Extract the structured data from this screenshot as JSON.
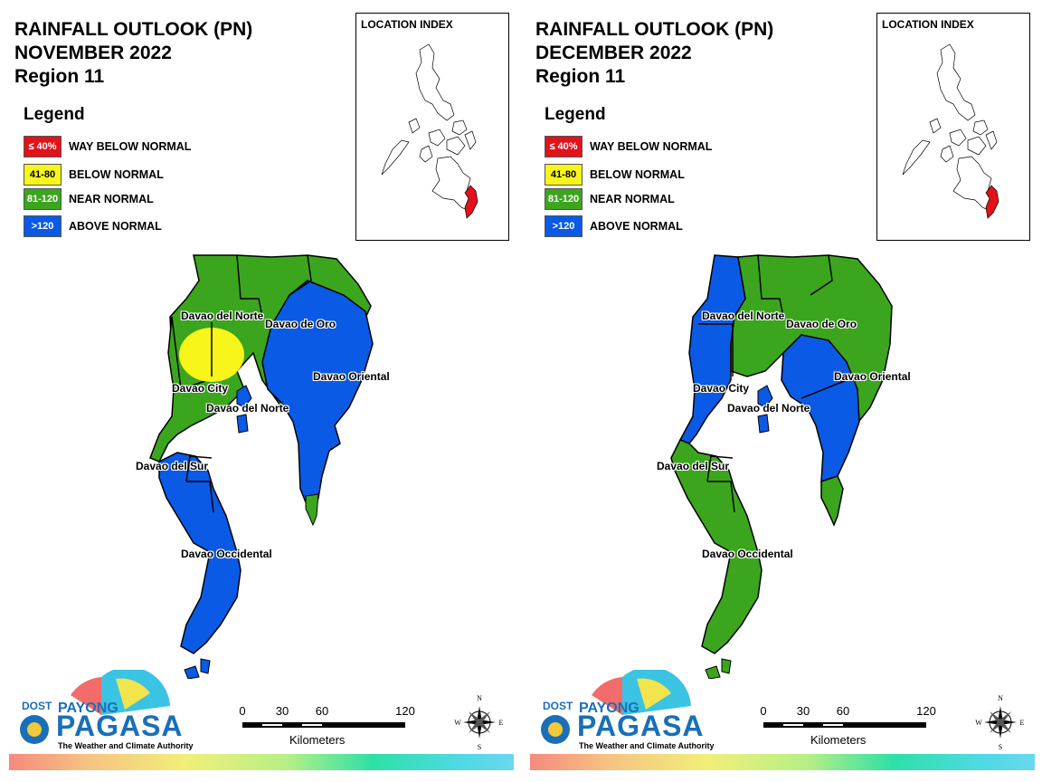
{
  "legend": {
    "title": "Legend",
    "items": [
      {
        "swatch_text": "≤ 40%",
        "label": "WAY BELOW NORMAL",
        "color": "#e1121a",
        "text_color": "#ffffff"
      },
      {
        "swatch_text": "41-80",
        "label": "BELOW NORMAL",
        "color": "#f7f51a",
        "text_color": "#000000"
      },
      {
        "swatch_text": "81-120",
        "label": "NEAR NORMAL",
        "color": "#3ca51e",
        "text_color": "#ffffff"
      },
      {
        "swatch_text": ">120",
        "label": "ABOVE NORMAL",
        "color": "#0a5ae6",
        "text_color": "#ffffff"
      }
    ]
  },
  "location_index": {
    "title": "LOCATION INDEX",
    "highlight_color": "#e1121a"
  },
  "panels": [
    {
      "title_line1": "RAINFALL OUTLOOK (PN)",
      "title_line2": "NOVEMBER 2022",
      "title_line3": "Region 11",
      "provinces": {
        "davao_del_norte": "near-normal",
        "davao_del_norte_center": "below-normal",
        "davao_de_oro": "near-normal",
        "davao_oriental": "above-normal",
        "davao_city": "near-normal",
        "samal_islands": "above-normal",
        "davao_del_sur": "above-normal",
        "davao_occidental": "above-normal"
      },
      "labels": {
        "davao_del_norte": "Davao del Norte",
        "davao_de_oro": "Davao de Oro",
        "davao_oriental": "Davao Oriental",
        "davao_city": "Davao City",
        "davao_del_norte_2": "Davao del Norte",
        "davao_del_sur": "Davao del Sur",
        "davao_occidental": "Davao Occidental"
      }
    },
    {
      "title_line1": "RAINFALL OUTLOOK (PN)",
      "title_line2": "DECEMBER 2022",
      "title_line3": "Region 11",
      "provinces": {
        "davao_del_norte": "near-normal",
        "davao_de_oro": "near-normal",
        "davao_oriental": "near-normal",
        "davao_oriental_west": "above-normal",
        "davao_city": "above-normal",
        "samal_islands": "above-normal",
        "davao_del_sur": "near-normal",
        "davao_occidental": "near-normal"
      },
      "labels": {
        "davao_del_norte": "Davao del Norte",
        "davao_de_oro": "Davao de Oro",
        "davao_oriental": "Davao Oriental",
        "davao_city": "Davao City",
        "davao_del_norte_2": "Davao del Norte",
        "davao_del_sur": "Davao del Sur",
        "davao_occidental": "Davao Occidental"
      }
    }
  ],
  "logo": {
    "dost": "DOST",
    "payong": "PAYONG",
    "pagasa": "PAGASA",
    "tagline": "The Weather and Climate Authority"
  },
  "scale_bar": {
    "ticks": [
      "0",
      "30",
      "60",
      "120"
    ],
    "unit": "Kilometers"
  },
  "compass": {
    "n": "N",
    "s": "S",
    "e": "E",
    "w": "W"
  }
}
